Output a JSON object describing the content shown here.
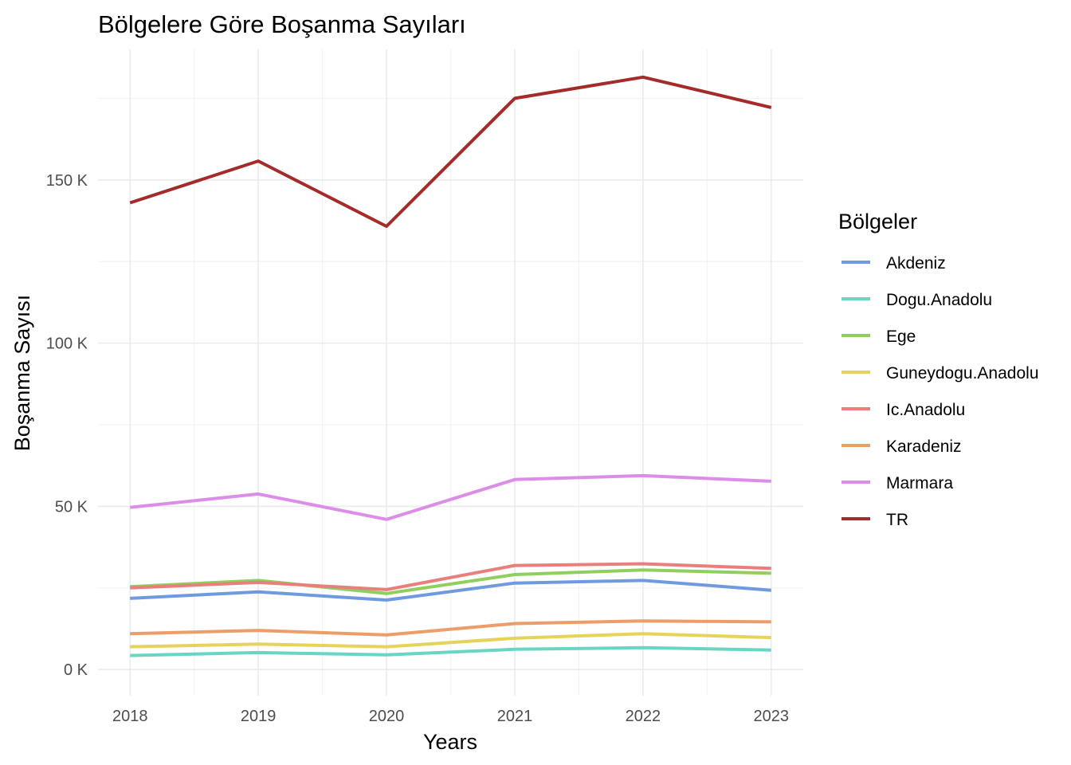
{
  "chart_data": {
    "type": "line",
    "title": "Bölgelere Göre Boşanma Sayıları",
    "xlabel": "Years",
    "ylabel": "Boşanma Sayısı",
    "x": [
      2018,
      2019,
      2020,
      2021,
      2022,
      2023
    ],
    "x_tick_labels": [
      "2018",
      "2019",
      "2020",
      "2021",
      "2022",
      "2023"
    ],
    "y_ticks": [
      0,
      50000,
      100000,
      150000
    ],
    "y_tick_labels": [
      "0 K",
      "50 K",
      "100 K",
      "150 K"
    ],
    "ylim": [
      -8000,
      190000
    ],
    "xlim": [
      2017.75,
      2023.25
    ],
    "grid": true,
    "legend": {
      "title": "Bölgeler",
      "position": "right"
    },
    "series": [
      {
        "name": "Akdeniz",
        "color": "#6f9ae0",
        "values": [
          21800,
          23800,
          21300,
          26500,
          27300,
          24300
        ]
      },
      {
        "name": "Dogu.Anadolu",
        "color": "#6ad5c3",
        "values": [
          4300,
          5200,
          4500,
          6200,
          6700,
          6000
        ]
      },
      {
        "name": "Ege",
        "color": "#8fcf5e",
        "values": [
          25400,
          27300,
          23300,
          29100,
          30500,
          29500
        ]
      },
      {
        "name": "Guneydogu.Anadolu",
        "color": "#e6d35a",
        "values": [
          7000,
          7800,
          7000,
          9600,
          11000,
          9800
        ]
      },
      {
        "name": "Ic.Anadolu",
        "color": "#e97f7c",
        "values": [
          25000,
          26700,
          24500,
          31900,
          32400,
          31000
        ]
      },
      {
        "name": "Karadeniz",
        "color": "#ec9d68",
        "values": [
          11000,
          12000,
          10600,
          14100,
          14900,
          14600
        ]
      },
      {
        "name": "Marmara",
        "color": "#dc8de8",
        "values": [
          49700,
          53800,
          46000,
          58200,
          59400,
          57700
        ]
      },
      {
        "name": "TR",
        "color": "#a52a2a",
        "values": [
          143000,
          155800,
          135800,
          175000,
          181500,
          172200
        ]
      }
    ]
  }
}
